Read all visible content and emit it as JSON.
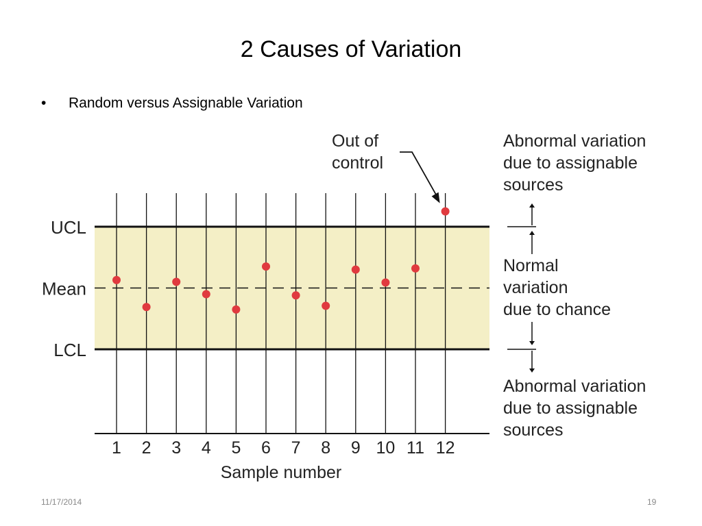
{
  "slide": {
    "title": "2 Causes of Variation",
    "bullet_symbol": "•",
    "bullet_text": "Random versus Assignable Variation",
    "footer_date": "11/17/2014",
    "footer_page": "19"
  },
  "colors": {
    "band_fill": "#f4efc6",
    "point_fill": "#e03a3f",
    "line": "#111111"
  },
  "chart_data": {
    "type": "scatter",
    "title": "",
    "xlabel": "Sample number",
    "ylabel": "",
    "categories": [
      "1",
      "2",
      "3",
      "4",
      "5",
      "6",
      "7",
      "8",
      "9",
      "10",
      "11",
      "12"
    ],
    "values": [
      0.13,
      -0.31,
      0.1,
      -0.1,
      -0.35,
      0.35,
      -0.12,
      -0.29,
      0.3,
      0.09,
      0.32,
      1.25
    ],
    "ylim": [
      -1.5,
      1.5
    ],
    "control_lines": [
      {
        "label": "UCL",
        "value": 1.0
      },
      {
        "label": "Mean",
        "value": 0.0
      },
      {
        "label": "LCL",
        "value": -1.0
      }
    ],
    "annotations": {
      "out_of_control": [
        "Out of",
        "control"
      ],
      "above": [
        "Abnormal variation",
        "due to assignable",
        "sources"
      ],
      "within": [
        "Normal",
        "variation",
        "due to chance"
      ],
      "below": [
        "Abnormal variation",
        "due to assignable",
        "sources"
      ]
    },
    "grid": true,
    "legend": "none"
  }
}
